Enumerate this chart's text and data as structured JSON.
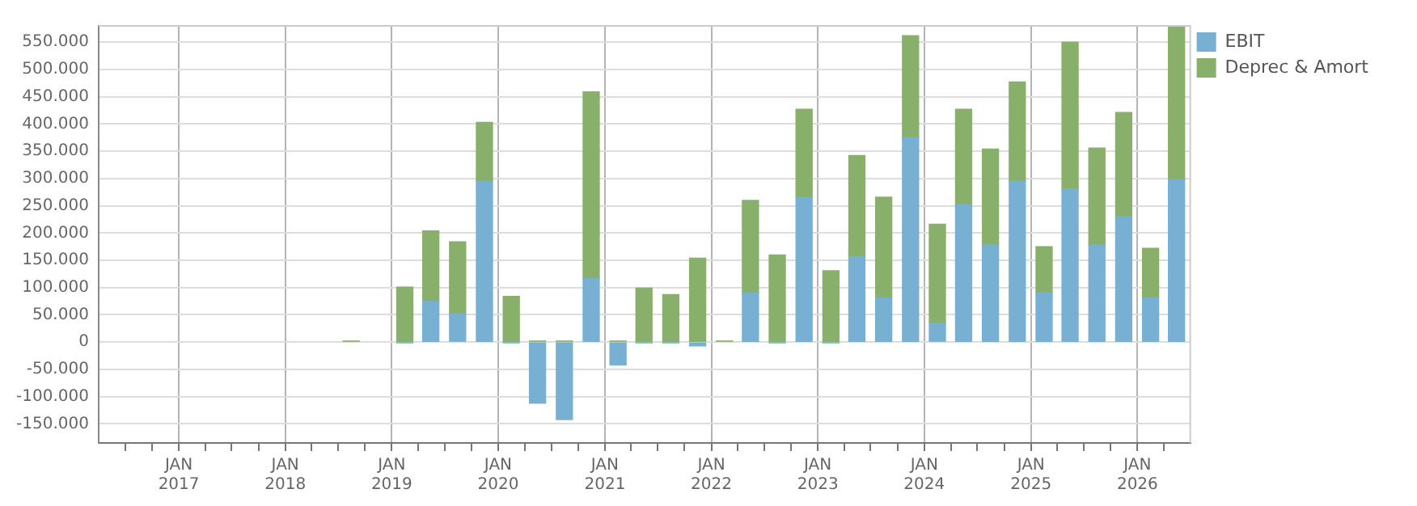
{
  "chart_data": {
    "type": "bar",
    "stacked": true,
    "x": [
      "2018-08-15",
      "2019-02-15",
      "2019-05-15",
      "2019-08-15",
      "2019-11-15",
      "2020-02-15",
      "2020-05-15",
      "2020-08-15",
      "2020-11-15",
      "2021-02-15",
      "2021-05-15",
      "2021-08-15",
      "2021-11-15",
      "2022-02-15",
      "2022-05-15",
      "2022-08-15",
      "2022-11-15",
      "2023-02-15",
      "2023-05-15",
      "2023-08-15",
      "2023-11-15",
      "2024-02-15",
      "2024-05-15",
      "2024-08-15",
      "2024-11-15",
      "2025-02-15",
      "2025-05-15",
      "2025-08-15",
      "2025-11-15",
      "2026-02-15",
      "2026-05-15"
    ],
    "series": [
      {
        "name": "EBIT",
        "color": "#78b0d3",
        "values": [
          null,
          -1000,
          75000,
          52000,
          295000,
          -1000,
          -112000,
          -142000,
          117000,
          -42000,
          -1000,
          -1000,
          -7000,
          null,
          90000,
          -1000,
          266000,
          -1000,
          157000,
          81000,
          375000,
          35000,
          252000,
          178000,
          295000,
          90000,
          281000,
          178000,
          230000,
          81000,
          298000
        ]
      },
      {
        "name": "Deprec & Amort",
        "color": "#88b06a",
        "values": [
          2000,
          101000,
          129000,
          132000,
          108000,
          84000,
          2000,
          2000,
          342000,
          2000,
          99000,
          87000,
          154000,
          2000,
          170000,
          160000,
          161000,
          131000,
          185000,
          185000,
          187000,
          181000,
          175000,
          176000,
          182000,
          85000,
          269000,
          178000,
          191000,
          91000,
          281000
        ]
      }
    ],
    "xlim": [
      "2016-04-01",
      "2026-07-01"
    ],
    "xticks": [
      {
        "value": "2016-07-01",
        "label": null
      },
      {
        "value": "2016-10-01",
        "label": null
      },
      {
        "value": "2017-01-01",
        "label": "JAN\n2017"
      },
      {
        "value": "2017-04-01",
        "label": null
      },
      {
        "value": "2017-07-01",
        "label": null
      },
      {
        "value": "2017-10-01",
        "label": null
      },
      {
        "value": "2018-01-01",
        "label": "JAN\n2018"
      },
      {
        "value": "2018-04-01",
        "label": null
      },
      {
        "value": "2018-07-01",
        "label": null
      },
      {
        "value": "2018-10-01",
        "label": null
      },
      {
        "value": "2019-01-01",
        "label": "JAN\n2019"
      },
      {
        "value": "2019-04-01",
        "label": null
      },
      {
        "value": "2019-07-01",
        "label": null
      },
      {
        "value": "2019-10-01",
        "label": null
      },
      {
        "value": "2020-01-01",
        "label": "JAN\n2020"
      },
      {
        "value": "2020-04-01",
        "label": null
      },
      {
        "value": "2020-07-01",
        "label": null
      },
      {
        "value": "2020-10-01",
        "label": null
      },
      {
        "value": "2021-01-01",
        "label": "JAN\n2021"
      },
      {
        "value": "2021-04-01",
        "label": null
      },
      {
        "value": "2021-07-01",
        "label": null
      },
      {
        "value": "2021-10-01",
        "label": null
      },
      {
        "value": "2022-01-01",
        "label": "JAN\n2022"
      },
      {
        "value": "2022-04-01",
        "label": null
      },
      {
        "value": "2022-07-01",
        "label": null
      },
      {
        "value": "2022-10-01",
        "label": null
      },
      {
        "value": "2023-01-01",
        "label": "JAN\n2023"
      },
      {
        "value": "2023-04-01",
        "label": null
      },
      {
        "value": "2023-07-01",
        "label": null
      },
      {
        "value": "2023-10-01",
        "label": null
      },
      {
        "value": "2024-01-01",
        "label": "JAN\n2024"
      },
      {
        "value": "2024-04-01",
        "label": null
      },
      {
        "value": "2024-07-01",
        "label": null
      },
      {
        "value": "2024-10-01",
        "label": null
      },
      {
        "value": "2025-01-01",
        "label": "JAN\n2025"
      },
      {
        "value": "2025-04-01",
        "label": null
      },
      {
        "value": "2025-07-01",
        "label": null
      },
      {
        "value": "2025-10-01",
        "label": null
      },
      {
        "value": "2026-01-01",
        "label": "JAN\n2026"
      },
      {
        "value": "2026-04-01",
        "label": null
      }
    ],
    "ylim": [
      -185000,
      580000
    ],
    "yticks": [
      {
        "value": -150000,
        "label": "-150.000"
      },
      {
        "value": -100000,
        "label": "-100.000"
      },
      {
        "value": -50000,
        "label": "-50.000"
      },
      {
        "value": 0,
        "label": "0"
      },
      {
        "value": 50000,
        "label": "50.000"
      },
      {
        "value": 100000,
        "label": "100.000"
      },
      {
        "value": 150000,
        "label": "150.000"
      },
      {
        "value": 200000,
        "label": "200.000"
      },
      {
        "value": 250000,
        "label": "250.000"
      },
      {
        "value": 300000,
        "label": "300.000"
      },
      {
        "value": 350000,
        "label": "350.000"
      },
      {
        "value": 400000,
        "label": "400.000"
      },
      {
        "value": 450000,
        "label": "450.000"
      },
      {
        "value": 500000,
        "label": "500.000"
      },
      {
        "value": 550000,
        "label": "550.000"
      }
    ],
    "grid": true,
    "legend": "top right"
  }
}
